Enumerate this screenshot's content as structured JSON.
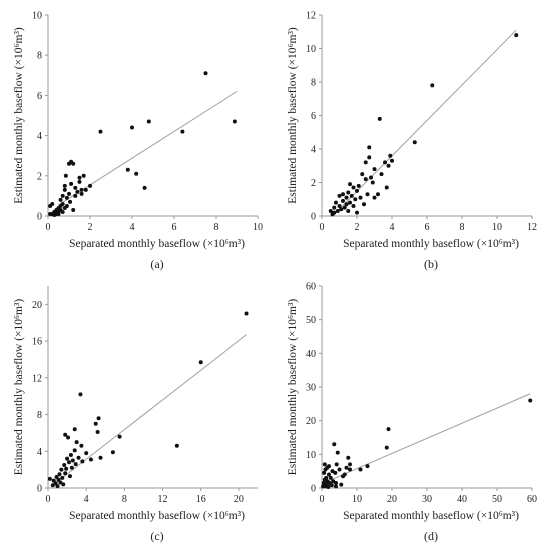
{
  "chart_data": [
    {
      "type": "scatter",
      "panel": "(a)",
      "caption": "(a)",
      "xlabel": "Separated monthly baseflow (×10⁶m³)",
      "ylabel": "Estimated monthly baseflow (×10⁶m³)",
      "xlim": [
        0,
        10
      ],
      "ylim": [
        0,
        10
      ],
      "xticks": [
        0,
        2,
        4,
        6,
        8,
        10
      ],
      "yticks": [
        0,
        2,
        4,
        6,
        8,
        10
      ],
      "grid": false,
      "fit_line": {
        "x": [
          0.5,
          9.0
        ],
        "y": [
          0.55,
          6.2
        ]
      },
      "points": [
        [
          0.1,
          0.5
        ],
        [
          0.2,
          0.6
        ],
        [
          0.1,
          0.1
        ],
        [
          0.2,
          0.1
        ],
        [
          0.3,
          0.2
        ],
        [
          0.3,
          0.05
        ],
        [
          0.4,
          0.1
        ],
        [
          0.4,
          0.3
        ],
        [
          0.5,
          0.2
        ],
        [
          0.5,
          0.4
        ],
        [
          0.5,
          0.1
        ],
        [
          0.6,
          0.3
        ],
        [
          0.6,
          0.8
        ],
        [
          0.6,
          0.5
        ],
        [
          0.7,
          0.6
        ],
        [
          0.7,
          1.0
        ],
        [
          0.7,
          0.2
        ],
        [
          0.8,
          0.4
        ],
        [
          0.8,
          1.3
        ],
        [
          0.8,
          1.5
        ],
        [
          0.85,
          2.0
        ],
        [
          0.9,
          0.9
        ],
        [
          0.9,
          0.5
        ],
        [
          1.0,
          1.1
        ],
        [
          1.0,
          2.6
        ],
        [
          1.05,
          0.7
        ],
        [
          1.1,
          2.7
        ],
        [
          1.1,
          1.6
        ],
        [
          1.2,
          2.6
        ],
        [
          1.2,
          0.3
        ],
        [
          1.3,
          1.4
        ],
        [
          1.3,
          1.0
        ],
        [
          1.4,
          1.2
        ],
        [
          1.5,
          1.7
        ],
        [
          1.5,
          1.9
        ],
        [
          1.6,
          1.3
        ],
        [
          1.6,
          1.1
        ],
        [
          1.7,
          2.0
        ],
        [
          1.8,
          1.3
        ],
        [
          2.0,
          1.5
        ],
        [
          2.5,
          4.2
        ],
        [
          3.8,
          2.3
        ],
        [
          4.0,
          4.4
        ],
        [
          4.2,
          2.1
        ],
        [
          4.6,
          1.4
        ],
        [
          4.8,
          4.7
        ],
        [
          6.4,
          4.2
        ],
        [
          7.5,
          7.1
        ],
        [
          8.9,
          4.7
        ]
      ]
    },
    {
      "type": "scatter",
      "panel": "(b)",
      "caption": "(b)",
      "xlabel": "Separated monthly baseflow (×10⁶m³)",
      "ylabel": "Estimated monthly baseflow (×10⁶m³)",
      "xlim": [
        0,
        12
      ],
      "ylim": [
        0,
        12
      ],
      "xticks": [
        0,
        2,
        4,
        6,
        8,
        10,
        12
      ],
      "yticks": [
        0,
        2,
        4,
        6,
        8,
        10,
        12
      ],
      "grid": false,
      "fit_line": {
        "x": [
          0.7,
          11.1
        ],
        "y": [
          0.1,
          11.1
        ]
      },
      "points": [
        [
          0.5,
          0.3
        ],
        [
          0.6,
          0.1
        ],
        [
          0.7,
          0.5
        ],
        [
          0.7,
          0.2
        ],
        [
          0.8,
          0.8
        ],
        [
          0.9,
          0.3
        ],
        [
          1.0,
          1.2
        ],
        [
          1.0,
          0.6
        ],
        [
          1.1,
          0.4
        ],
        [
          1.2,
          0.9
        ],
        [
          1.2,
          1.3
        ],
        [
          1.3,
          0.5
        ],
        [
          1.4,
          0.7
        ],
        [
          1.4,
          1.1
        ],
        [
          1.5,
          1.4
        ],
        [
          1.5,
          0.3
        ],
        [
          1.6,
          0.8
        ],
        [
          1.6,
          1.9
        ],
        [
          1.7,
          1.2
        ],
        [
          1.8,
          1.7
        ],
        [
          1.8,
          0.6
        ],
        [
          1.9,
          1.0
        ],
        [
          2.0,
          1.5
        ],
        [
          2.0,
          0.2
        ],
        [
          2.1,
          1.8
        ],
        [
          2.2,
          1.1
        ],
        [
          2.3,
          2.5
        ],
        [
          2.4,
          0.7
        ],
        [
          2.5,
          2.2
        ],
        [
          2.5,
          3.2
        ],
        [
          2.6,
          1.3
        ],
        [
          2.7,
          4.1
        ],
        [
          2.7,
          3.5
        ],
        [
          2.8,
          2.3
        ],
        [
          2.9,
          2.0
        ],
        [
          3.0,
          1.1
        ],
        [
          3.0,
          2.8
        ],
        [
          3.2,
          1.3
        ],
        [
          3.3,
          5.8
        ],
        [
          3.4,
          2.5
        ],
        [
          3.6,
          3.2
        ],
        [
          3.7,
          1.7
        ],
        [
          3.8,
          3.0
        ],
        [
          3.9,
          3.6
        ],
        [
          4.0,
          3.3
        ],
        [
          5.3,
          4.4
        ],
        [
          6.3,
          7.8
        ],
        [
          11.1,
          10.8
        ]
      ]
    },
    {
      "type": "scatter",
      "panel": "(c)",
      "caption": "(c)",
      "xlabel": "Separated monthly baseflow (×10⁶m³)",
      "ylabel": "Estimated monthly baseflow (×10⁶m³)",
      "xlim": [
        0,
        22
      ],
      "ylim": [
        0,
        22
      ],
      "xticks": [
        0,
        4,
        8,
        12,
        16,
        20
      ],
      "yticks": [
        0,
        4,
        8,
        12,
        16,
        20
      ],
      "grid": false,
      "fit_line": {
        "x": [
          0.5,
          20.8
        ],
        "y": [
          0.3,
          16.7
        ]
      },
      "points": [
        [
          0.2,
          1.0
        ],
        [
          0.5,
          0.3
        ],
        [
          0.6,
          0.8
        ],
        [
          0.8,
          0.5
        ],
        [
          0.9,
          1.2
        ],
        [
          1.0,
          0.2
        ],
        [
          1.1,
          0.9
        ],
        [
          1.2,
          1.5
        ],
        [
          1.3,
          0.6
        ],
        [
          1.4,
          2.0
        ],
        [
          1.5,
          1.1
        ],
        [
          1.6,
          0.4
        ],
        [
          1.7,
          2.5
        ],
        [
          1.8,
          5.8
        ],
        [
          1.8,
          1.6
        ],
        [
          1.9,
          2.1
        ],
        [
          2.0,
          3.2
        ],
        [
          2.1,
          5.5
        ],
        [
          2.2,
          2.8
        ],
        [
          2.3,
          1.3
        ],
        [
          2.4,
          3.6
        ],
        [
          2.5,
          2.2
        ],
        [
          2.6,
          3.0
        ],
        [
          2.8,
          6.4
        ],
        [
          2.8,
          4.1
        ],
        [
          2.9,
          2.6
        ],
        [
          3.0,
          5.0
        ],
        [
          3.2,
          3.3
        ],
        [
          3.4,
          10.2
        ],
        [
          3.5,
          4.6
        ],
        [
          3.6,
          2.9
        ],
        [
          4.0,
          3.8
        ],
        [
          4.5,
          3.1
        ],
        [
          5.0,
          7.0
        ],
        [
          5.2,
          6.1
        ],
        [
          5.3,
          7.6
        ],
        [
          5.5,
          3.3
        ],
        [
          6.8,
          3.9
        ],
        [
          7.5,
          5.6
        ],
        [
          13.5,
          4.6
        ],
        [
          16.0,
          13.7
        ],
        [
          20.8,
          19.0
        ]
      ]
    },
    {
      "type": "scatter",
      "panel": "(d)",
      "caption": "(d)",
      "xlabel": "Separated monthly baseflow (×10⁶m³)",
      "ylabel": "Estimated monthly baseflow (×10⁶m³)",
      "xlim": [
        0,
        60
      ],
      "ylim": [
        0,
        60
      ],
      "xticks": [
        0,
        10,
        20,
        30,
        40,
        50,
        60
      ],
      "yticks": [
        0,
        10,
        20,
        30,
        40,
        50,
        60
      ],
      "grid": false,
      "fit_line": {
        "x": [
          0.5,
          59.5
        ],
        "y": [
          1.5,
          28.0
        ]
      },
      "points": [
        [
          0.3,
          0.5
        ],
        [
          0.5,
          1.5
        ],
        [
          0.6,
          4.5
        ],
        [
          0.8,
          7.0
        ],
        [
          0.8,
          2.5
        ],
        [
          1.0,
          0.5
        ],
        [
          1.0,
          5.5
        ],
        [
          1.2,
          3.0
        ],
        [
          1.3,
          1.0
        ],
        [
          1.5,
          6.0
        ],
        [
          1.5,
          2.0
        ],
        [
          1.8,
          0.3
        ],
        [
          2.0,
          4.0
        ],
        [
          2.0,
          6.5
        ],
        [
          2.2,
          1.5
        ],
        [
          2.5,
          3.0
        ],
        [
          2.8,
          0.8
        ],
        [
          3.0,
          5.0
        ],
        [
          3.2,
          2.0
        ],
        [
          3.5,
          13.0
        ],
        [
          3.8,
          4.5
        ],
        [
          4.0,
          0.5
        ],
        [
          4.0,
          1.5
        ],
        [
          4.2,
          7.0
        ],
        [
          4.5,
          10.5
        ],
        [
          5.0,
          5.5
        ],
        [
          5.5,
          1.0
        ],
        [
          6.0,
          3.5
        ],
        [
          6.5,
          4.0
        ],
        [
          7.0,
          6.0
        ],
        [
          7.5,
          9.0
        ],
        [
          8.0,
          5.5
        ],
        [
          8.0,
          7.0
        ],
        [
          11.0,
          5.5
        ],
        [
          13.0,
          6.5
        ],
        [
          18.5,
          12.0
        ],
        [
          19.0,
          17.5
        ],
        [
          59.5,
          26.0
        ]
      ]
    }
  ]
}
